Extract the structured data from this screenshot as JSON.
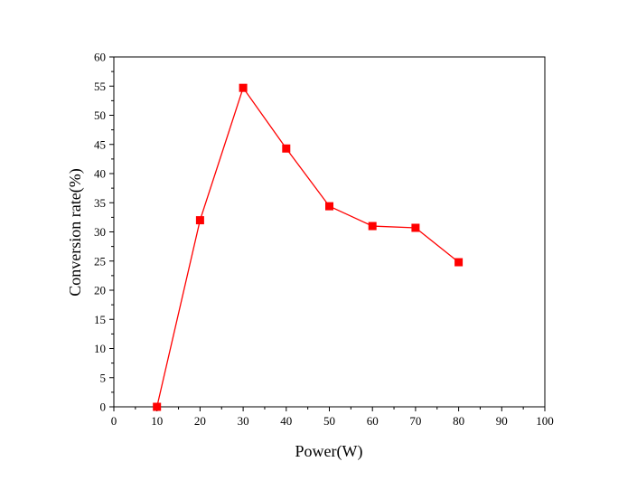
{
  "chart_data": {
    "type": "line",
    "xlabel": "Power(W)",
    "ylabel": "Conversion rate(%)",
    "xlim": [
      0,
      100
    ],
    "ylim": [
      0,
      60
    ],
    "xticks": [
      "0",
      "10",
      "20",
      "30",
      "40",
      "50",
      "60",
      "70",
      "80",
      "90",
      "100"
    ],
    "yticks": [
      "0",
      "5",
      "10",
      "15",
      "20",
      "25",
      "30",
      "35",
      "40",
      "45",
      "50",
      "55",
      "60"
    ],
    "grid": false,
    "marker": "square",
    "series": [
      {
        "color": "#ff0000",
        "x": [
          10,
          20,
          30,
          40,
          50,
          60,
          70,
          80
        ],
        "y": [
          0,
          32.0,
          54.7,
          44.3,
          34.4,
          31.0,
          30.7,
          24.8
        ]
      }
    ]
  }
}
